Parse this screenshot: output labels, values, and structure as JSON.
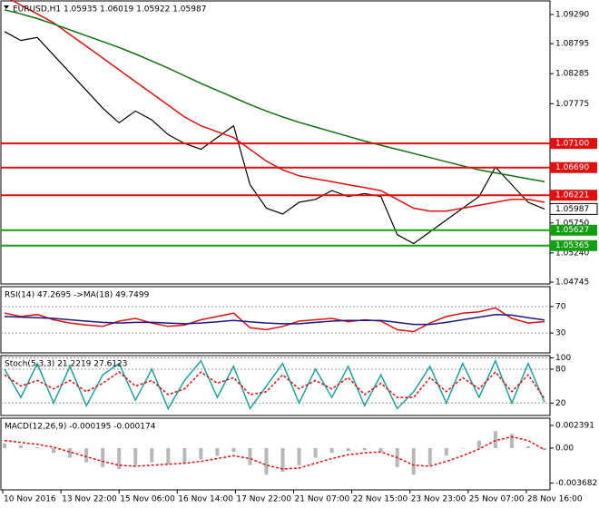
{
  "x_axis_labels": [
    "10 Nov 2016",
    "13 Nov 22:00",
    "15 Nov 06:00",
    "16 Nov 14:00",
    "17 Nov 22:00",
    "21 Nov 07:00",
    "22 Nov 15:00",
    "23 Nov 23:00",
    "25 Nov 07:00",
    "28 Nov 16:00"
  ],
  "chart_data": [
    {
      "type": "line",
      "title": "EURUSD,H1  1.05935 1.06019 1.05922 1.05987",
      "ylim": [
        1.04714,
        1.09521
      ],
      "yticks": [
        {
          "value": 1.0929,
          "label": "1.09290"
        },
        1.08795,
        1.08285,
        1.07775,
        {
          "value": 1.0575,
          "label": "1.05750"
        },
        {
          "value": 1.0524,
          "label": "1.05240"
        },
        1.04745
      ],
      "series": [
        {
          "name": "Price",
          "color": "#000000",
          "values": [
            1.09,
            1.0885,
            1.089,
            1.086,
            1.083,
            1.08,
            1.077,
            1.0745,
            1.0765,
            1.075,
            1.0725,
            1.071,
            1.07,
            1.072,
            1.074,
            1.064,
            1.06,
            1.059,
            1.061,
            1.0615,
            1.063,
            1.062,
            1.0625,
            1.062,
            1.0555,
            1.054,
            1.056,
            1.058,
            1.06,
            1.062,
            1.067,
            1.064,
            1.061,
            1.05987
          ]
        },
        {
          "name": "MA red",
          "color": "#e01010",
          "values": [
            1.096,
            1.0945,
            1.093,
            1.0915,
            1.0895,
            1.0875,
            1.0855,
            1.0835,
            1.0815,
            1.0795,
            1.0775,
            1.0755,
            1.074,
            1.073,
            1.072,
            1.07,
            1.068,
            1.0665,
            1.0655,
            1.065,
            1.0645,
            1.064,
            1.0635,
            1.063,
            1.0615,
            1.06,
            1.0595,
            1.0595,
            1.06,
            1.0605,
            1.061,
            1.0615,
            1.0615,
            1.061
          ]
        },
        {
          "name": "MA green",
          "color": "#107010",
          "values": [
            1.0937,
            1.093,
            1.0922,
            1.0913,
            1.0903,
            1.0893,
            1.0883,
            1.0873,
            1.0862,
            1.085,
            1.0838,
            1.0825,
            1.0812,
            1.08,
            1.0788,
            1.0776,
            1.0765,
            1.0755,
            1.0746,
            1.0738,
            1.073,
            1.0722,
            1.0714,
            1.0707,
            1.07,
            1.0693,
            1.0686,
            1.0679,
            1.0672,
            1.0665,
            1.066,
            1.0655,
            1.065,
            1.0645
          ]
        }
      ],
      "levels": [
        {
          "value": 1.071,
          "label": "1.07100",
          "color": "#e01010"
        },
        {
          "value": 1.0669,
          "label": "1.06690",
          "color": "#e01010"
        },
        {
          "value": 1.06221,
          "label": "1.06221",
          "color": "#e01010"
        },
        {
          "value": 1.05627,
          "label": "1.05627",
          "color": "#10a010"
        },
        {
          "value": 1.05365,
          "label": "1.05365",
          "color": "#10a010"
        }
      ],
      "last_price": 1.05987
    },
    {
      "type": "line",
      "title": "RSI(14) 47.2695  ->MA(18) 49.7499",
      "ylim": [
        0,
        100
      ],
      "yticks": [
        70,
        30
      ],
      "grid": true,
      "series": [
        {
          "name": "RSI",
          "color": "#e01010",
          "values": [
            60,
            55,
            58,
            50,
            45,
            42,
            40,
            48,
            52,
            45,
            40,
            42,
            50,
            55,
            60,
            38,
            35,
            40,
            48,
            50,
            52,
            47,
            50,
            48,
            35,
            32,
            45,
            55,
            60,
            62,
            68,
            52,
            45,
            47.27
          ]
        },
        {
          "name": "MA",
          "color": "#1a1a80",
          "values": [
            55,
            54,
            53,
            52,
            50,
            48,
            46,
            45,
            46,
            46,
            45,
            44,
            45,
            47,
            49,
            47,
            45,
            44,
            44,
            46,
            48,
            49,
            49,
            49,
            46,
            43,
            43,
            46,
            50,
            54,
            58,
            57,
            53,
            49.75
          ]
        }
      ]
    },
    {
      "type": "line",
      "title": "Stoch(5,3,3) 21.2219 27.6123",
      "ylim": [
        -2,
        104
      ],
      "yticks": [
        100,
        80,
        20
      ],
      "grid": true,
      "series": [
        {
          "name": "Main",
          "color": "#20a0a0",
          "values": [
            80,
            30,
            90,
            20,
            85,
            15,
            70,
            90,
            25,
            80,
            10,
            60,
            95,
            30,
            85,
            10,
            50,
            90,
            20,
            80,
            30,
            85,
            15,
            70,
            10,
            40,
            85,
            20,
            90,
            30,
            95,
            20,
            90,
            21.22
          ]
        },
        {
          "name": "Signal",
          "color": "#e01010",
          "dashed": true,
          "values": [
            70,
            50,
            60,
            45,
            60,
            40,
            55,
            75,
            50,
            60,
            35,
            45,
            75,
            55,
            65,
            35,
            40,
            70,
            45,
            60,
            45,
            65,
            35,
            55,
            30,
            30,
            65,
            40,
            65,
            45,
            75,
            40,
            70,
            27.61
          ]
        }
      ]
    },
    {
      "type": "macd",
      "title": "MACD(12,26,9) -0.000195 -0.000174",
      "ylim": [
        -0.0044,
        0.003156
      ],
      "yticks": [
        0.002391,
        {
          "value": 0,
          "label": "0.00"
        },
        -0.003682
      ],
      "series": [
        {
          "name": "Histogram",
          "color": "#b8b8b8",
          "values": [
            0.0005,
            0.0003,
            0.0001,
            -0.0005,
            -0.001,
            -0.0015,
            -0.002,
            -0.0022,
            -0.0018,
            -0.0015,
            -0.0017,
            -0.0016,
            -0.0012,
            -0.0008,
            -0.0004,
            -0.0018,
            -0.0028,
            -0.0025,
            -0.0018,
            -0.001,
            -0.0005,
            -0.0003,
            -0.0002,
            -0.0004,
            -0.002,
            -0.0028,
            -0.0018,
            -0.0008,
            0,
            0.0008,
            0.0018,
            0.0015,
            0.0002,
            -0.000195
          ]
        },
        {
          "name": "Signal",
          "color": "#e01010",
          "dashed": true,
          "values": [
            0.0008,
            0.0006,
            0.0004,
            0.0001,
            -0.0004,
            -0.0009,
            -0.0014,
            -0.0018,
            -0.0019,
            -0.0018,
            -0.0017,
            -0.0016,
            -0.0014,
            -0.0011,
            -0.0008,
            -0.0011,
            -0.0018,
            -0.0022,
            -0.0021,
            -0.0016,
            -0.0011,
            -0.0007,
            -0.0005,
            -0.0004,
            -0.001,
            -0.0018,
            -0.0019,
            -0.0014,
            -0.0008,
            -0.0001,
            0.0008,
            0.0012,
            0.0008,
            -0.000174
          ]
        }
      ]
    }
  ]
}
